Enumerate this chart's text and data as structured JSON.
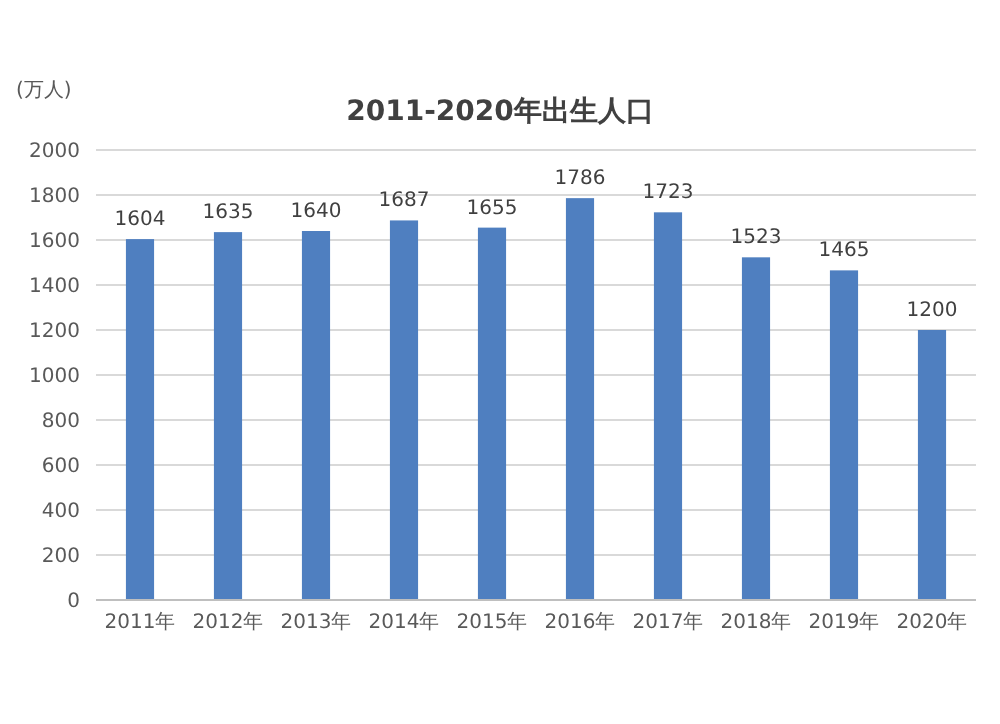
{
  "chart_data": {
    "type": "bar",
    "title": "2011-2020年出生人口",
    "ylabel": "(万人)",
    "categories": [
      "2011年",
      "2012年",
      "2013年",
      "2014年",
      "2015年",
      "2016年",
      "2017年",
      "2018年",
      "2019年",
      "2020年"
    ],
    "values": [
      1604,
      1635,
      1640,
      1687,
      1655,
      1786,
      1723,
      1523,
      1465,
      1200
    ],
    "color": "#4f7fc0",
    "ylim": [
      0,
      2000
    ],
    "yticks": [
      0,
      200,
      400,
      600,
      800,
      1000,
      1200,
      1400,
      1600,
      1800,
      2000
    ],
    "grid": "y",
    "data_labels": true
  }
}
